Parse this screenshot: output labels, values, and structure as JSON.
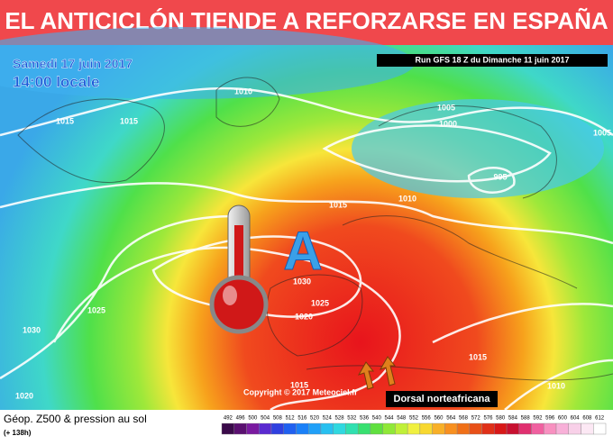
{
  "header": {
    "title": "EL ANTICICLÓN TIENDE A REFORZARSE EN ESPAÑA"
  },
  "map": {
    "date": "Samedi 17 juin 2017",
    "time": "14:00 locale",
    "run": "Run GFS 18 Z du Dimanche 11 juin 2017",
    "high_label": "A",
    "copyright": "Copyright © 2017 Meteociel.fr",
    "annotation": "Dorsal norteafricana",
    "isobar_labels": [
      "1010",
      "1015",
      "1015",
      "1005",
      "1000",
      "995",
      "1010",
      "1015",
      "1030",
      "1025",
      "1020",
      "1025",
      "1030",
      "1020",
      "1015",
      "1015",
      "1010",
      "1005"
    ]
  },
  "legend": {
    "title": "Géop. Z500 & pression au sol",
    "subtitle": "(+ 138h)",
    "scale": [
      492,
      496,
      500,
      504,
      508,
      512,
      516,
      520,
      524,
      528,
      532,
      536,
      540,
      544,
      548,
      552,
      556,
      560,
      564,
      568,
      572,
      576,
      580,
      584,
      588,
      592,
      596,
      600,
      604,
      608,
      612
    ]
  }
}
